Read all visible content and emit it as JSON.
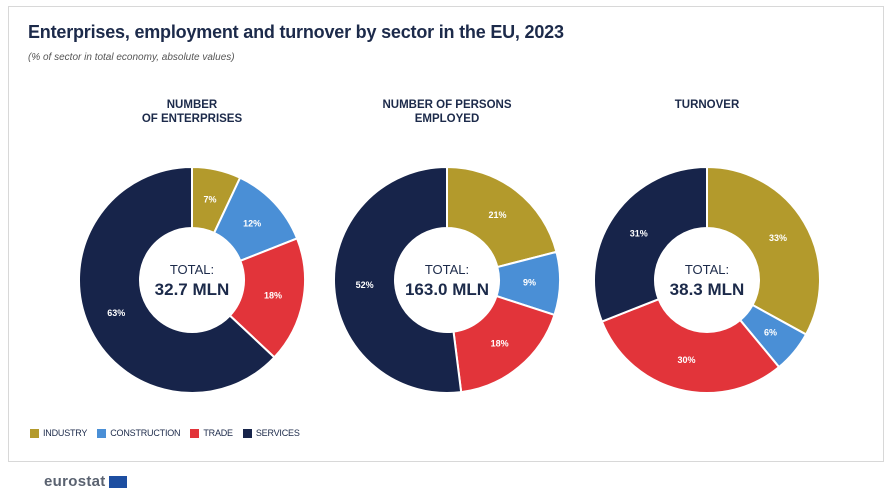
{
  "title": "Enterprises, employment and turnover by sector in the EU, 2023",
  "subtitle": "(% of sector in total economy, absolute values)",
  "colors": {
    "industry": "#b39a2c",
    "construction": "#4a8fd6",
    "trade": "#e2343a",
    "services": "#17244a"
  },
  "legend": [
    "INDUSTRY",
    "CONSTRUCTION",
    "TRADE",
    "SERVICES"
  ],
  "footer": {
    "logo_text": "eurostat"
  },
  "chart_data": [
    {
      "type": "pie",
      "heading_line1": "NUMBER",
      "heading_line2": "OF ENTERPRISES",
      "center_label": "TOTAL:",
      "center_value": "32.7 MLN",
      "categories": [
        "INDUSTRY",
        "CONSTRUCTION",
        "TRADE",
        "SERVICES"
      ],
      "values": [
        7,
        12,
        18,
        63
      ]
    },
    {
      "type": "pie",
      "heading_line1": "NUMBER OF PERSONS",
      "heading_line2": "EMPLOYED",
      "center_label": "TOTAL:",
      "center_value": "163.0 MLN",
      "categories": [
        "INDUSTRY",
        "CONSTRUCTION",
        "TRADE",
        "SERVICES"
      ],
      "values": [
        21,
        9,
        18,
        52
      ]
    },
    {
      "type": "pie",
      "heading_line1": "TURNOVER",
      "heading_line2": "",
      "center_label": "TOTAL:",
      "center_value": "38.3 MLN",
      "categories": [
        "INDUSTRY",
        "CONSTRUCTION",
        "TRADE",
        "SERVICES"
      ],
      "values": [
        33,
        6,
        30,
        31
      ]
    }
  ]
}
